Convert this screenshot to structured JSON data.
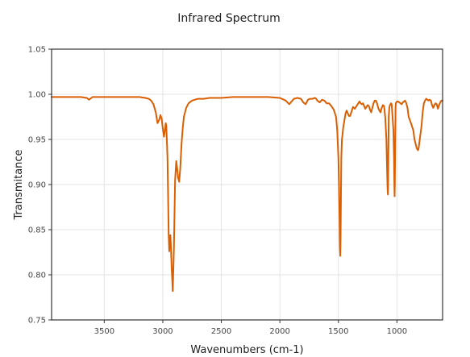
{
  "chart_data": {
    "type": "line",
    "title": "Infrared Spectrum",
    "xlabel": "Wavenumbers (cm-1)",
    "ylabel": "Transmitance",
    "xlim": [
      3950,
      610
    ],
    "ylim": [
      0.75,
      1.05
    ],
    "x_reversed": true,
    "x_ticks": [
      3500,
      3000,
      2500,
      2000,
      1500,
      1000
    ],
    "y_ticks": [
      0.75,
      0.8,
      0.85,
      0.9,
      0.95,
      1.0,
      1.05
    ],
    "y_tick_labels": [
      "0.75",
      "0.80",
      "0.85",
      "0.90",
      "0.95",
      "1.00",
      "1.05"
    ],
    "grid": true,
    "color": "#d95f02",
    "series": [
      {
        "x": [
          3950,
          3800,
          3700,
          3650,
          3630,
          3600,
          3500,
          3400,
          3300,
          3200,
          3150,
          3120,
          3100,
          3080,
          3060,
          3045,
          3030,
          3020,
          3010,
          3000,
          2990,
          2980,
          2975,
          2970,
          2960,
          2955,
          2950,
          2945,
          2940,
          2935,
          2930,
          2925,
          2915,
          2905,
          2895,
          2885,
          2875,
          2870,
          2860,
          2850,
          2840,
          2830,
          2820,
          2800,
          2780,
          2750,
          2700,
          2650,
          2600,
          2500,
          2400,
          2300,
          2200,
          2100,
          2000,
          1950,
          1920,
          1900,
          1880,
          1850,
          1820,
          1800,
          1780,
          1760,
          1740,
          1720,
          1700,
          1690,
          1680,
          1660,
          1640,
          1620,
          1600,
          1580,
          1560,
          1540,
          1520,
          1510,
          1500,
          1495,
          1490,
          1487,
          1484,
          1481,
          1478,
          1475,
          1470,
          1465,
          1460,
          1450,
          1440,
          1430,
          1420,
          1410,
          1400,
          1390,
          1380,
          1375,
          1370,
          1360,
          1350,
          1340,
          1330,
          1320,
          1310,
          1300,
          1290,
          1280,
          1270,
          1260,
          1250,
          1240,
          1230,
          1220,
          1210,
          1200,
          1190,
          1180,
          1170,
          1160,
          1150,
          1140,
          1130,
          1120,
          1110,
          1100,
          1090,
          1085,
          1080,
          1077,
          1075,
          1073,
          1070,
          1065,
          1060,
          1050,
          1045,
          1040,
          1030,
          1025,
          1022,
          1020,
          1018,
          1016,
          1014,
          1012,
          1010,
          1005,
          1000,
          990,
          980,
          970,
          960,
          950,
          940,
          930,
          920,
          910,
          900,
          880,
          860,
          850,
          840,
          830,
          820,
          815,
          810,
          800,
          790,
          780,
          770,
          760,
          750,
          740,
          730,
          720,
          710,
          700,
          690,
          680,
          670,
          660,
          650,
          640,
          630,
          620,
          610
        ],
        "y": [
          0.997,
          0.997,
          0.997,
          0.996,
          0.994,
          0.997,
          0.997,
          0.997,
          0.997,
          0.997,
          0.996,
          0.995,
          0.993,
          0.989,
          0.98,
          0.968,
          0.972,
          0.977,
          0.973,
          0.962,
          0.953,
          0.962,
          0.968,
          0.965,
          0.93,
          0.89,
          0.845,
          0.826,
          0.84,
          0.844,
          0.828,
          0.81,
          0.782,
          0.83,
          0.905,
          0.926,
          0.915,
          0.908,
          0.903,
          0.92,
          0.945,
          0.962,
          0.975,
          0.985,
          0.99,
          0.993,
          0.995,
          0.995,
          0.996,
          0.996,
          0.997,
          0.997,
          0.997,
          0.997,
          0.996,
          0.993,
          0.989,
          0.992,
          0.995,
          0.996,
          0.995,
          0.991,
          0.989,
          0.994,
          0.995,
          0.995,
          0.996,
          0.995,
          0.993,
          0.991,
          0.994,
          0.993,
          0.99,
          0.99,
          0.987,
          0.983,
          0.975,
          0.96,
          0.93,
          0.9,
          0.86,
          0.83,
          0.821,
          0.845,
          0.89,
          0.93,
          0.95,
          0.955,
          0.962,
          0.97,
          0.978,
          0.982,
          0.979,
          0.976,
          0.976,
          0.98,
          0.984,
          0.986,
          0.985,
          0.984,
          0.986,
          0.988,
          0.99,
          0.992,
          0.99,
          0.989,
          0.99,
          0.987,
          0.984,
          0.986,
          0.988,
          0.987,
          0.983,
          0.98,
          0.985,
          0.99,
          0.993,
          0.993,
          0.99,
          0.985,
          0.982,
          0.98,
          0.985,
          0.988,
          0.987,
          0.975,
          0.95,
          0.92,
          0.895,
          0.889,
          0.9,
          0.94,
          0.975,
          0.985,
          0.988,
          0.99,
          0.989,
          0.98,
          0.96,
          0.93,
          0.9,
          0.887,
          0.9,
          0.93,
          0.96,
          0.985,
          0.99,
          0.991,
          0.992,
          0.992,
          0.991,
          0.99,
          0.989,
          0.991,
          0.992,
          0.993,
          0.99,
          0.985,
          0.975,
          0.968,
          0.96,
          0.95,
          0.945,
          0.94,
          0.938,
          0.94,
          0.945,
          0.955,
          0.965,
          0.98,
          0.99,
          0.993,
          0.995,
          0.994,
          0.993,
          0.994,
          0.993,
          0.988,
          0.985,
          0.988,
          0.99,
          0.989,
          0.984,
          0.988,
          0.991,
          0.993,
          0.993
        ]
      }
    ]
  }
}
